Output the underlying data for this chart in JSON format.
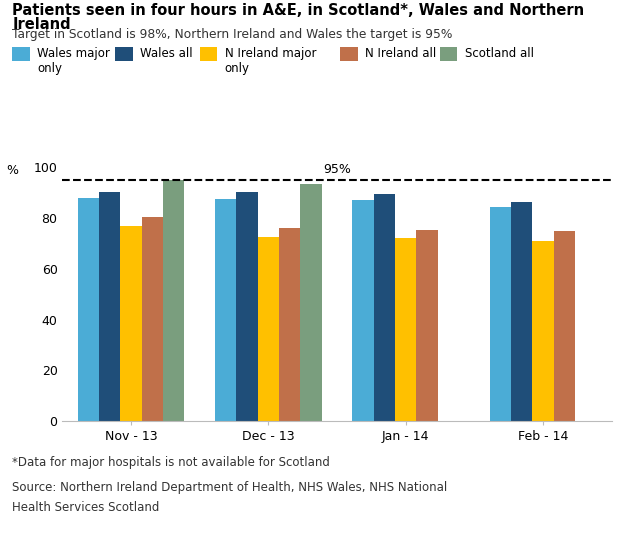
{
  "title_line1": "Patients seen in four hours in A&E, in Scotland*, Wales and Northern",
  "title_line2": "Ireland",
  "subtitle": "Target in Scotland is 98%, Northern Ireland and Wales the target is 95%",
  "ylabel": "%",
  "footnote1": "*Data for major hospitals is not available for Scotland",
  "footnote2": "Source: Northern Ireland Department of Health, NHS Wales, NHS National",
  "footnote3": "Health Services Scotland",
  "categories": [
    "Nov - 13",
    "Dec - 13",
    "Jan - 14",
    "Feb - 14"
  ],
  "series": {
    "Wales major only": [
      88,
      87.5,
      87,
      84.5
    ],
    "Wales all": [
      90.5,
      90.5,
      89.5,
      86.5
    ],
    "N Ireland major only": [
      77,
      72.5,
      72,
      71
    ],
    "N Ireland all": [
      80.5,
      76,
      75.5,
      75
    ],
    "Scotland all": [
      95,
      93.5,
      null,
      null
    ]
  },
  "colors": {
    "Wales major only": "#4bacd6",
    "Wales all": "#1f4e79",
    "N Ireland major only": "#ffc000",
    "N Ireland all": "#c0704a",
    "Scotland all": "#7a9e7e"
  },
  "target_line": 95,
  "target_label": "95%",
  "ylim": [
    0,
    100
  ],
  "yticks": [
    0,
    20,
    40,
    60,
    80,
    100
  ],
  "background_color": "#ffffff"
}
